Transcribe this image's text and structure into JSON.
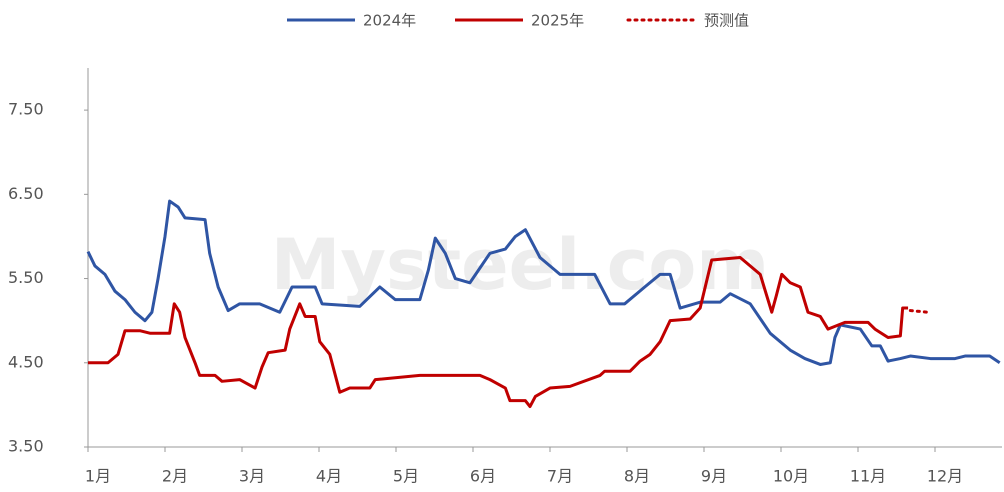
{
  "chart_data": {
    "type": "line",
    "watermark": "Mysteel.com",
    "xlim": [
      1,
      12.87
    ],
    "xticks": [
      {
        "value": 1,
        "label": "1月"
      },
      {
        "value": 2,
        "label": "2月"
      },
      {
        "value": 3,
        "label": "3月"
      },
      {
        "value": 4,
        "label": "4月"
      },
      {
        "value": 5,
        "label": "5月"
      },
      {
        "value": 6,
        "label": "6月"
      },
      {
        "value": 7,
        "label": "7月"
      },
      {
        "value": 8,
        "label": "8月"
      },
      {
        "value": 9,
        "label": "9月"
      },
      {
        "value": 10,
        "label": "10月"
      },
      {
        "value": 11,
        "label": "11月"
      },
      {
        "value": 12,
        "label": "12月"
      }
    ],
    "ylim": [
      3.5,
      8.0
    ],
    "yticks": [
      {
        "value": 3.5,
        "label": "3.50"
      },
      {
        "value": 4.5,
        "label": "4.50"
      },
      {
        "value": 5.5,
        "label": "5.50"
      },
      {
        "value": 6.5,
        "label": "6.50"
      },
      {
        "value": 7.5,
        "label": "7.50"
      }
    ],
    "series": [
      {
        "name": "2024年",
        "color": "#2f55a4",
        "dash": false,
        "x": [
          1.0,
          1.09,
          1.22,
          1.35,
          1.48,
          1.61,
          1.74,
          1.83,
          1.91,
          2.0,
          2.06,
          2.17,
          2.26,
          2.52,
          2.58,
          2.69,
          2.82,
          2.97,
          3.23,
          3.49,
          3.65,
          3.95,
          4.04,
          4.53,
          4.79,
          4.99,
          5.31,
          5.42,
          5.51,
          5.64,
          5.77,
          5.96,
          6.22,
          6.42,
          6.55,
          6.68,
          6.87,
          7.13,
          7.58,
          7.78,
          7.97,
          8.23,
          8.43,
          8.56,
          8.69,
          8.95,
          9.21,
          9.34,
          9.6,
          9.86,
          10.12,
          10.31,
          10.51,
          10.64,
          10.7,
          10.77,
          11.03,
          11.18,
          11.29,
          11.39,
          11.55,
          11.68,
          11.94,
          12.26,
          12.39,
          12.71,
          12.84
        ],
        "values": [
          5.82,
          5.65,
          5.55,
          5.35,
          5.25,
          5.1,
          5.0,
          5.1,
          5.5,
          6.0,
          6.42,
          6.35,
          6.22,
          6.2,
          5.8,
          5.4,
          5.12,
          5.2,
          5.2,
          5.1,
          5.4,
          5.4,
          5.2,
          5.17,
          5.4,
          5.25,
          5.25,
          5.6,
          5.98,
          5.8,
          5.5,
          5.45,
          5.8,
          5.85,
          6.0,
          6.08,
          5.75,
          5.55,
          5.55,
          5.2,
          5.2,
          5.4,
          5.55,
          5.55,
          5.15,
          5.22,
          5.22,
          5.32,
          5.2,
          4.85,
          4.65,
          4.55,
          4.48,
          4.5,
          4.8,
          4.95,
          4.9,
          4.7,
          4.7,
          4.52,
          4.55,
          4.58,
          4.55,
          4.55,
          4.58,
          4.58,
          4.5
        ]
      },
      {
        "name": "2025年",
        "color": "#c00000",
        "dash": false,
        "x": [
          1.0,
          1.26,
          1.39,
          1.48,
          1.68,
          1.81,
          2.06,
          2.12,
          2.19,
          2.26,
          2.39,
          2.45,
          2.65,
          2.74,
          2.97,
          3.17,
          3.26,
          3.34,
          3.56,
          3.62,
          3.75,
          3.82,
          3.95,
          4.01,
          4.14,
          4.27,
          4.4,
          4.66,
          4.73,
          5.31,
          6.09,
          6.22,
          6.42,
          6.48,
          6.68,
          6.74,
          6.81,
          7.0,
          7.26,
          7.65,
          7.71,
          8.04,
          8.17,
          8.3,
          8.43,
          8.56,
          8.82,
          8.95,
          9.1,
          9.47,
          9.73,
          9.83,
          9.88,
          9.94,
          10.01,
          10.12,
          10.25,
          10.35,
          10.51,
          10.61,
          10.83,
          11.13,
          11.22,
          11.39,
          11.55,
          11.58,
          11.65
        ],
        "values": [
          4.5,
          4.5,
          4.6,
          4.88,
          4.88,
          4.85,
          4.85,
          5.2,
          5.1,
          4.8,
          4.5,
          4.35,
          4.35,
          4.28,
          4.3,
          4.2,
          4.45,
          4.62,
          4.65,
          4.9,
          5.2,
          5.05,
          5.05,
          4.75,
          4.6,
          4.15,
          4.2,
          4.2,
          4.3,
          4.35,
          4.35,
          4.3,
          4.2,
          4.05,
          4.05,
          3.98,
          4.1,
          4.2,
          4.22,
          4.35,
          4.4,
          4.4,
          4.52,
          4.6,
          4.75,
          5.0,
          5.02,
          5.15,
          5.72,
          5.75,
          5.55,
          5.25,
          5.1,
          5.3,
          5.55,
          5.45,
          5.4,
          5.1,
          5.05,
          4.9,
          4.98,
          4.98,
          4.9,
          4.8,
          4.82,
          5.15,
          5.15
        ]
      },
      {
        "name": "预测值",
        "color": "#c00000",
        "dash": true,
        "x": [
          11.68,
          11.91
        ],
        "values": [
          5.12,
          5.1
        ]
      }
    ]
  }
}
